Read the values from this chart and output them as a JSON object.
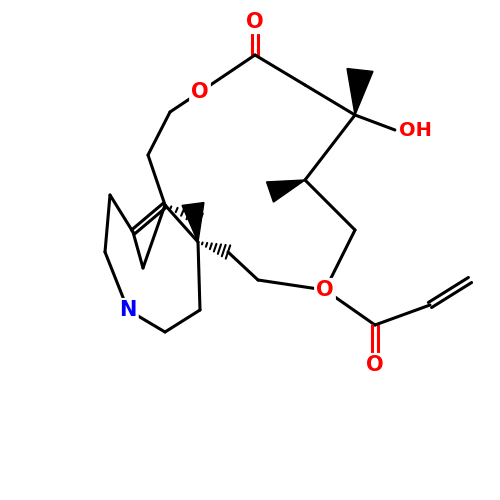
{
  "background_color": "#ffffff",
  "bond_color": "#000000",
  "atom_colors": {
    "O": "#ff0000",
    "N": "#0000ff",
    "C": "#000000",
    "H": "#000000"
  },
  "title": "",
  "figsize": [
    5.0,
    5.0
  ],
  "dpi": 100
}
